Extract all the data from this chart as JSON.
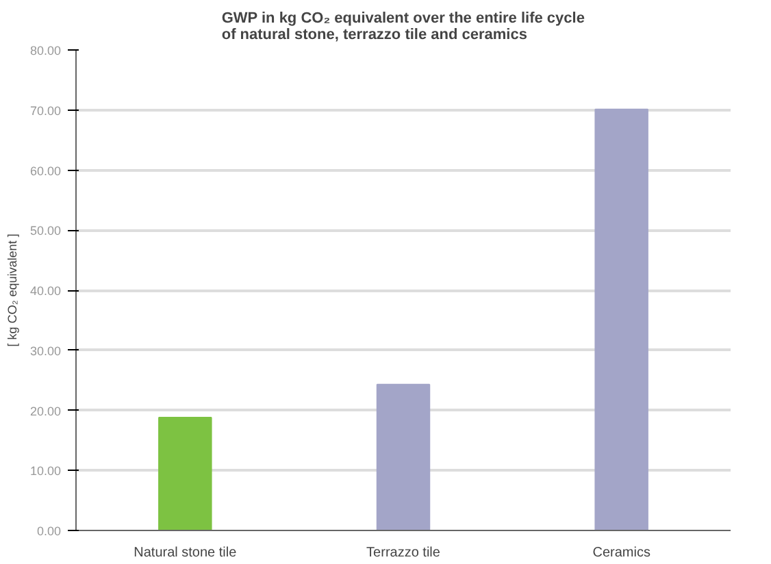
{
  "chart_data": {
    "type": "bar",
    "title": "GWP in kg CO₂ equivalent over the entire life cycle\nof natural stone, terrazzo tile and ceramics",
    "ylabel": "[ kg CO₂ equivalent ]",
    "categories": [
      "Natural stone tile",
      "Terrazzo tile",
      "Ceramics"
    ],
    "values": [
      18.8,
      24.3,
      70.1
    ],
    "colors": [
      "#7dc242",
      "#a3a5c8",
      "#a3a5c8"
    ],
    "ylim": [
      0,
      80
    ],
    "yticks": [
      {
        "value": 0,
        "label": "0.00"
      },
      {
        "value": 10,
        "label": "10.00"
      },
      {
        "value": 20,
        "label": "20.00"
      },
      {
        "value": 30,
        "label": "30.00"
      },
      {
        "value": 40,
        "label": "40.00"
      },
      {
        "value": 50,
        "label": "50.00"
      },
      {
        "value": 60,
        "label": "60.00"
      },
      {
        "value": 70,
        "label": "70.00"
      },
      {
        "value": 80,
        "label": "80.00"
      }
    ],
    "grid": "y"
  }
}
